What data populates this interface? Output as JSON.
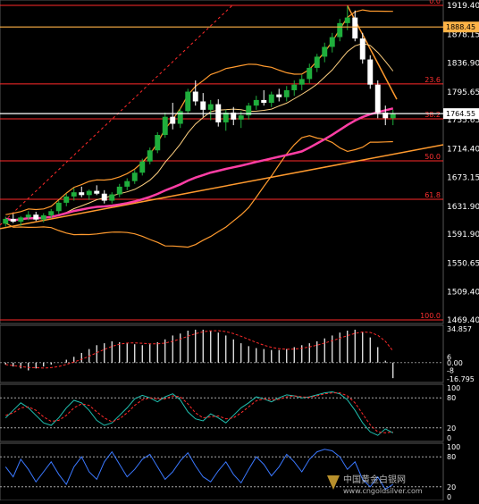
{
  "chart_data": [
    {
      "type": "candlestick",
      "title": "",
      "y_ticks": [
        "1919.40",
        "1878.15",
        "1836.90",
        "1795.65",
        "1755.65",
        "1714.40",
        "1673.15",
        "1631.90",
        "1591.90",
        "1550.65",
        "1509.40",
        "1469.40"
      ],
      "ylim": [
        1469.4,
        1919.4
      ],
      "fib_levels": [
        {
          "label": "0.0",
          "value": 1919.4
        },
        {
          "label": "23.6",
          "value": 1807.0
        },
        {
          "label": "38.2",
          "value": 1757.0
        },
        {
          "label": "50.0",
          "value": 1697.0
        },
        {
          "label": "61.8",
          "value": 1642.0
        },
        {
          "label": "100.0",
          "value": 1469.4
        }
      ],
      "highlight_prices": [
        {
          "label": "1888.45",
          "value": 1888.45,
          "color": "#ffb347"
        },
        {
          "label": "1764.55",
          "value": 1764.55,
          "color": "#ffffff"
        }
      ],
      "colors": {
        "up": "#1fae3c",
        "down": "#ffffff",
        "ma_slow": "#ff3ea5",
        "bollinger": "#ff9a2e",
        "ma_fast": "#ffd080",
        "trend": "#ff9a2e",
        "fib": "#ff2a2a"
      },
      "ohlc": [
        [
          1607,
          1617,
          1603,
          1614
        ],
        [
          1614,
          1621,
          1608,
          1610
        ],
        [
          1610,
          1618,
          1604,
          1616
        ],
        [
          1616,
          1625,
          1612,
          1620
        ],
        [
          1620,
          1624,
          1611,
          1613
        ],
        [
          1613,
          1622,
          1609,
          1619
        ],
        [
          1619,
          1628,
          1615,
          1625
        ],
        [
          1625,
          1640,
          1621,
          1637
        ],
        [
          1637,
          1650,
          1632,
          1646
        ],
        [
          1646,
          1658,
          1640,
          1652
        ],
        [
          1652,
          1660,
          1645,
          1648
        ],
        [
          1648,
          1656,
          1641,
          1654
        ],
        [
          1654,
          1662,
          1648,
          1650
        ],
        [
          1650,
          1655,
          1636,
          1640
        ],
        [
          1640,
          1652,
          1636,
          1649
        ],
        [
          1649,
          1664,
          1645,
          1660
        ],
        [
          1660,
          1672,
          1655,
          1668
        ],
        [
          1668,
          1684,
          1664,
          1680
        ],
        [
          1680,
          1700,
          1676,
          1696
        ],
        [
          1696,
          1716,
          1692,
          1712
        ],
        [
          1712,
          1738,
          1708,
          1734
        ],
        [
          1734,
          1766,
          1730,
          1760
        ],
        [
          1760,
          1780,
          1742,
          1750
        ],
        [
          1750,
          1772,
          1744,
          1768
        ],
        [
          1768,
          1800,
          1764,
          1796
        ],
        [
          1796,
          1812,
          1776,
          1782
        ],
        [
          1782,
          1794,
          1760,
          1770
        ],
        [
          1770,
          1784,
          1755,
          1778
        ],
        [
          1778,
          1785,
          1746,
          1752
        ],
        [
          1752,
          1770,
          1740,
          1766
        ],
        [
          1766,
          1774,
          1748,
          1756
        ],
        [
          1756,
          1768,
          1744,
          1762
        ],
        [
          1762,
          1780,
          1756,
          1776
        ],
        [
          1776,
          1790,
          1770,
          1784
        ],
        [
          1784,
          1798,
          1776,
          1780
        ],
        [
          1780,
          1796,
          1774,
          1792
        ],
        [
          1792,
          1800,
          1782,
          1788
        ],
        [
          1788,
          1804,
          1782,
          1798
        ],
        [
          1798,
          1812,
          1790,
          1806
        ],
        [
          1806,
          1820,
          1798,
          1814
        ],
        [
          1814,
          1836,
          1808,
          1830
        ],
        [
          1830,
          1850,
          1824,
          1846
        ],
        [
          1846,
          1866,
          1838,
          1860
        ],
        [
          1860,
          1880,
          1852,
          1874
        ],
        [
          1874,
          1900,
          1868,
          1894
        ],
        [
          1894,
          1919,
          1884,
          1902
        ],
        [
          1902,
          1912,
          1868,
          1872
        ],
        [
          1872,
          1880,
          1836,
          1842
        ],
        [
          1842,
          1848,
          1800,
          1806
        ],
        [
          1806,
          1812,
          1758,
          1766
        ],
        [
          1766,
          1776,
          1748,
          1758
        ],
        [
          1758,
          1770,
          1748,
          1764
        ]
      ]
    },
    {
      "type": "bar",
      "name": "oscillator",
      "y_labels": [
        "34.857",
        "6",
        "0.00",
        "-8",
        "-16.795"
      ],
      "values": [
        -2,
        -4,
        -6,
        -8,
        -6,
        -4,
        -2,
        0,
        3,
        6,
        10,
        14,
        18,
        20,
        22,
        21,
        20,
        19,
        18,
        19,
        21,
        24,
        28,
        30,
        33,
        34,
        34,
        33,
        31,
        28,
        24,
        20,
        17,
        15,
        14,
        13,
        13,
        14,
        16,
        18,
        20,
        22,
        25,
        28,
        31,
        33,
        34,
        32,
        26,
        16,
        2,
        -16
      ]
    },
    {
      "type": "line",
      "name": "stochastic",
      "y_labels": [
        "100",
        "80",
        "20",
        "0"
      ],
      "k": [
        40,
        55,
        70,
        60,
        45,
        30,
        25,
        40,
        60,
        75,
        70,
        55,
        35,
        25,
        30,
        45,
        60,
        78,
        85,
        80,
        72,
        82,
        88,
        76,
        52,
        38,
        34,
        48,
        40,
        30,
        45,
        60,
        70,
        82,
        78,
        72,
        80,
        86,
        84,
        80,
        82,
        86,
        90,
        92,
        88,
        76,
        55,
        30,
        12,
        5,
        18,
        10
      ],
      "d": [
        45,
        50,
        60,
        62,
        55,
        42,
        33,
        35,
        45,
        60,
        68,
        65,
        52,
        40,
        32,
        38,
        50,
        65,
        76,
        80,
        78,
        78,
        84,
        82,
        68,
        50,
        40,
        42,
        44,
        38,
        40,
        50,
        62,
        74,
        78,
        76,
        77,
        82,
        84,
        82,
        81,
        84,
        88,
        90,
        90,
        84,
        70,
        48,
        26,
        12,
        10,
        12
      ]
    },
    {
      "type": "line",
      "name": "rsi",
      "y_labels": [
        "100",
        "80",
        "20",
        "0"
      ],
      "values": [
        60,
        40,
        75,
        55,
        30,
        50,
        70,
        45,
        25,
        60,
        80,
        50,
        35,
        70,
        90,
        65,
        40,
        55,
        75,
        85,
        60,
        35,
        50,
        72,
        88,
        62,
        40,
        30,
        52,
        70,
        45,
        28,
        55,
        80,
        65,
        42,
        60,
        85,
        70,
        50,
        75,
        90,
        95,
        92,
        80,
        55,
        70,
        35,
        20,
        40,
        15,
        25
      ]
    }
  ],
  "watermark": {
    "text_cn": "中国黄金白银网",
    "url": "www.cngoldsilver.com"
  }
}
